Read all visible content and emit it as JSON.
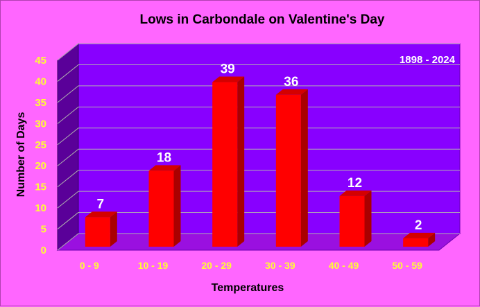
{
  "chart_data": {
    "type": "bar",
    "title": "Lows in Carbondale on Valentine's Day",
    "annotation": "1898 - 2024",
    "xlabel": "Temperatures",
    "ylabel": "Number of Days",
    "categories": [
      "0 - 9",
      "10 - 19",
      "20 - 29",
      "30 - 39",
      "40 - 49",
      "50 - 59"
    ],
    "values": [
      7,
      18,
      39,
      36,
      12,
      2
    ],
    "value_labels": [
      "7",
      "18",
      "39",
      "36",
      "12",
      "2"
    ],
    "ylim": [
      0,
      45
    ],
    "yticks": [
      "0",
      "5",
      "10",
      "15",
      "20",
      "25",
      "30",
      "35",
      "40",
      "45"
    ],
    "grid": true,
    "legend": "none",
    "colors": {
      "background": "#ff66ff",
      "plot_back": "#8800ff",
      "plot_side": "#5a0099",
      "plot_floor": "#9a10e0",
      "bar_front": "#ff0000",
      "bar_side": "#aa0000",
      "bar_top": "#d40000",
      "tick_text": "#ffff33",
      "label_text": "#ffffff"
    }
  }
}
